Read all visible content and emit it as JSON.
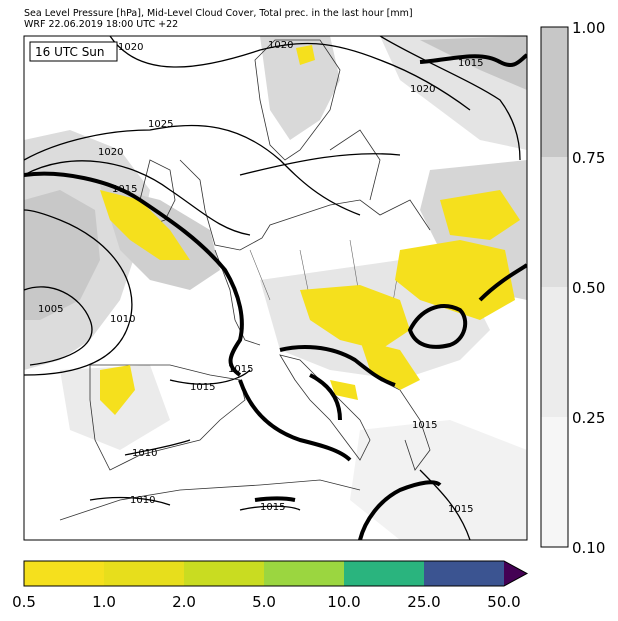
{
  "header": {
    "line1": "Sea Level Pressure [hPa], Mid-Level Cloud Cover, Total prec. in the last hour [mm]",
    "line2": "WRF 22.06.2019 18:00 UTC +22"
  },
  "map": {
    "valid_time_label": "16 UTC Sun",
    "isobar_labels": [
      "1020",
      "1020",
      "1015",
      "1020",
      "1025",
      "1020",
      "1015",
      "1005",
      "1010",
      "1015",
      "1015",
      "1010",
      "1010",
      "1015",
      "1015",
      "1015"
    ]
  },
  "cloud_scale": {
    "ticks": [
      "1.00",
      "0.75",
      "0.50",
      "0.25",
      "0.10"
    ],
    "colors": [
      "#c7c7c7",
      "#dedede",
      "#ececec",
      "#f6f6f6"
    ]
  },
  "precip_scale": {
    "ticks": [
      "0.5",
      "1.0",
      "2.0",
      "5.0",
      "10.0",
      "25.0",
      "50.0"
    ],
    "colors": [
      "#f5e01d",
      "#e7de1c",
      "#c9dc21",
      "#9bd640",
      "#2ab47e",
      "#3b5491",
      "#440154"
    ]
  }
}
